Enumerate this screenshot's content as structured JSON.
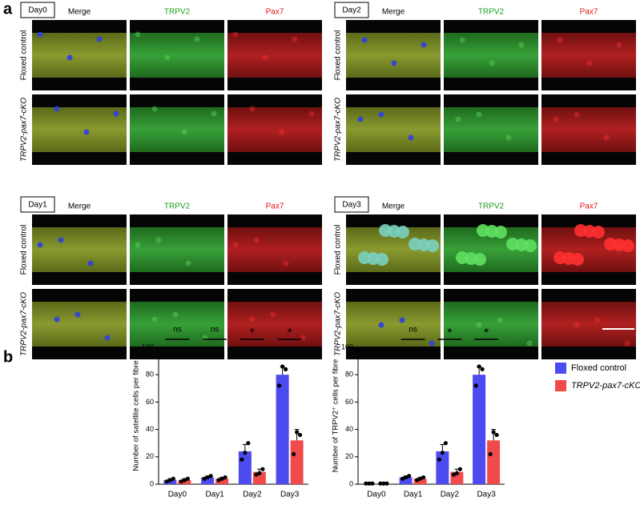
{
  "panel_a": {
    "label": "a",
    "groups": [
      {
        "day": "Day0",
        "columns": [
          "Merge",
          "TRPV2",
          "Pax7"
        ],
        "rows": [
          "Floxed control",
          "TRPV2-pax7-cKO"
        ]
      },
      {
        "day": "Day2",
        "columns": [
          "Merge",
          "TRPV2",
          "Pax7"
        ],
        "rows": [
          "Floxed control",
          "TRPV2-pax7-cKO"
        ]
      },
      {
        "day": "Day1",
        "columns": [
          "Merge",
          "TRPV2",
          "Pax7"
        ],
        "rows": [
          "Floxed control",
          "TRPV2-pax7-cKO"
        ]
      },
      {
        "day": "Day3",
        "columns": [
          "Merge",
          "TRPV2",
          "Pax7"
        ],
        "rows": [
          "Floxed control",
          "TRPV2-pax7-cKO"
        ]
      }
    ]
  },
  "panel_b": {
    "label": "b"
  },
  "chart_data": [
    {
      "type": "bar",
      "y_label": "Number of satellite cells per fibre",
      "categories": [
        "Day0",
        "Day1",
        "Day2",
        "Day3"
      ],
      "significance": [
        "ns",
        "ns",
        "*",
        "*"
      ],
      "ylim": [
        0,
        100
      ],
      "yticks": [
        0,
        20,
        40,
        60,
        80,
        100
      ],
      "series": [
        {
          "name": "Floxed control",
          "color": "#4b4bf0",
          "values": [
            3,
            5,
            24,
            80
          ],
          "errors": [
            1,
            1,
            5,
            6
          ],
          "points": [
            [
              2,
              3,
              4
            ],
            [
              4,
              5,
              6
            ],
            [
              18,
              23,
              30
            ],
            [
              72,
              86,
              84
            ]
          ]
        },
        {
          "name": "TRPV2-pax7-cKO",
          "color": "#f04a4a",
          "values": [
            3,
            4,
            9,
            32
          ],
          "errors": [
            1,
            1,
            2,
            8
          ],
          "points": [
            [
              2,
              3,
              4
            ],
            [
              3,
              4,
              5
            ],
            [
              7,
              8,
              11
            ],
            [
              22,
              38,
              36
            ]
          ]
        }
      ]
    },
    {
      "type": "bar",
      "y_label": "Number of TRPV2⁺ cells per fibre",
      "categories": [
        "Day0",
        "Day1",
        "Day2",
        "Day3"
      ],
      "significance": [
        null,
        "ns",
        "*",
        "*"
      ],
      "ylim": [
        0,
        100
      ],
      "yticks": [
        0,
        20,
        40,
        60,
        80,
        100
      ],
      "series": [
        {
          "color": "#4b4bf0",
          "values": [
            0.5,
            5,
            24,
            80
          ],
          "errors": [
            0.2,
            1,
            5,
            6
          ],
          "points": [
            [
              0.5,
              0.5,
              0.5
            ],
            [
              4,
              5,
              6
            ],
            [
              18,
              23,
              30
            ],
            [
              72,
              86,
              84
            ]
          ]
        },
        {
          "color": "#f04a4a",
          "values": [
            0.5,
            4,
            9,
            32
          ],
          "errors": [
            0.2,
            1,
            2,
            8
          ],
          "points": [
            [
              0.5,
              0.5,
              0.5
            ],
            [
              3,
              4,
              5
            ],
            [
              7,
              8,
              11
            ],
            [
              22,
              38,
              36
            ]
          ]
        }
      ]
    }
  ]
}
